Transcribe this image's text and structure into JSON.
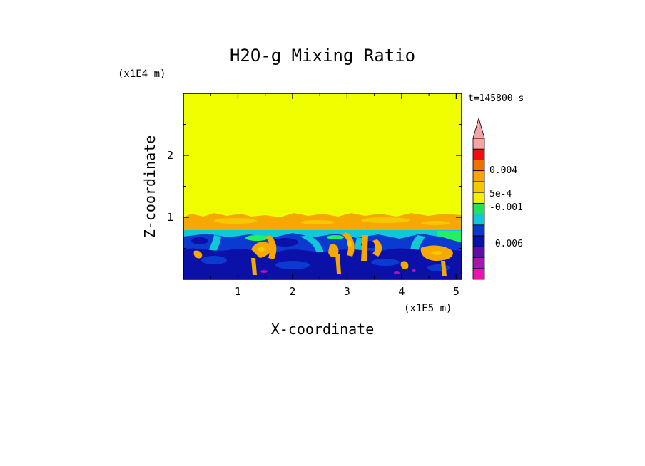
{
  "chart_data": {
    "type": "heatmap",
    "title": "H2O-g Mixing Ratio",
    "xlabel": "X-coordinate",
    "ylabel": "Z-coordinate",
    "x_unit": "(x1E5 m)",
    "y_unit": "(x1E4 m)",
    "time_label": "t=145800 s",
    "xlim": [
      0,
      5.1
    ],
    "ylim": [
      0,
      3.0
    ],
    "x_ticks": [
      1,
      2,
      3,
      4,
      5
    ],
    "y_ticks": [
      1,
      2
    ],
    "upper_layer_top_z": 3.0,
    "layer_interface_z": 0.82,
    "orange_band_z": [
      0.82,
      1.05
    ],
    "colorbar": {
      "levels_top_to_bottom": [
        {
          "color": "#f5a3a3"
        },
        {
          "color": "#ee1010"
        },
        {
          "color": "#f07000"
        },
        {
          "color": "#f7a800"
        },
        {
          "color": "#f5c800"
        },
        {
          "color": "#f5f000"
        },
        {
          "color": "#22e060"
        },
        {
          "color": "#10c8d8"
        },
        {
          "color": "#0a3ad0"
        },
        {
          "color": "#0a10a8"
        },
        {
          "color": "#6010a0"
        },
        {
          "color": "#b010b8"
        },
        {
          "color": "#f010b0"
        }
      ],
      "tick_labels": [
        "0.004",
        "5e-4",
        "-0.001",
        "-0.006"
      ],
      "extend": "max"
    },
    "colors": {
      "background_field": "#f0ff00",
      "orange": "#f7a800",
      "green": "#22f060",
      "cyan": "#10c8d8",
      "blue": "#0a3ad0",
      "navy": "#0a10a8",
      "magenta": "#b010b8"
    }
  }
}
